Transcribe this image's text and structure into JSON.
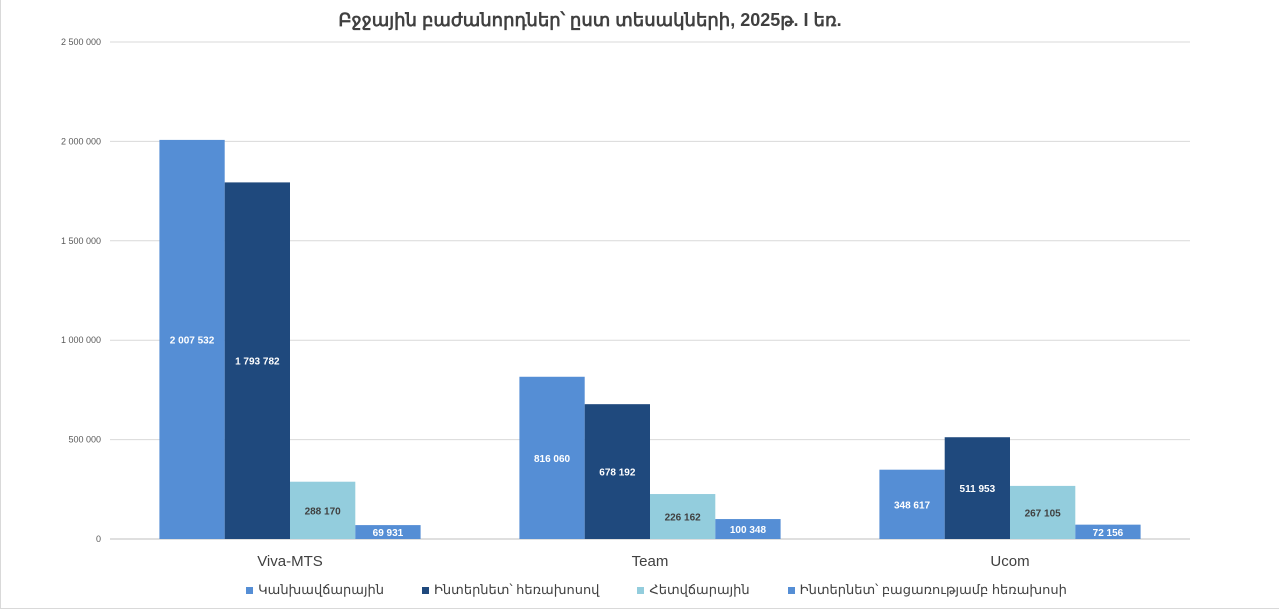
{
  "chart_data": {
    "type": "bar",
    "title": "Բջջային բաժանորդներ՝ ըստ տեսակների, 2025թ. I եռ.",
    "categories": [
      "Viva-MTS",
      "Team",
      "Ucom"
    ],
    "series": [
      {
        "name": "Կանխավճարային",
        "color": "#558ed5",
        "label_color": "#ffffff",
        "values": [
          2007532,
          816060,
          348617
        ],
        "labels": [
          "2 007 532",
          "816 060",
          "348 617"
        ]
      },
      {
        "name": "Ինտերնետ՝ հեռախոսով",
        "color": "#1f497d",
        "label_color": "#ffffff",
        "values": [
          1793782,
          678192,
          511953
        ],
        "labels": [
          "1 793 782",
          "678 192",
          "511 953"
        ]
      },
      {
        "name": "Հետվճարային",
        "color": "#93cddd",
        "label_color": "#404040",
        "values": [
          288170,
          226162,
          267105
        ],
        "labels": [
          "288 170",
          "226 162",
          "267 105"
        ]
      },
      {
        "name": "Ինտերնետ՝ բացառությամբ հեռախոսի",
        "color": "#558ed5",
        "label_color": "#ffffff",
        "values": [
          69931,
          100348,
          72156
        ],
        "labels": [
          "69 931",
          "100 348",
          "72 156"
        ]
      }
    ],
    "ylim": [
      0,
      2500000
    ],
    "yticks": [
      0,
      500000,
      1000000,
      1500000,
      2000000,
      2500000
    ],
    "ytick_labels": [
      "0",
      "500 000",
      "1 000 000",
      "1 500 000",
      "2 000 000",
      "2 500 000"
    ],
    "grid": true,
    "legend_position": "bottom"
  }
}
